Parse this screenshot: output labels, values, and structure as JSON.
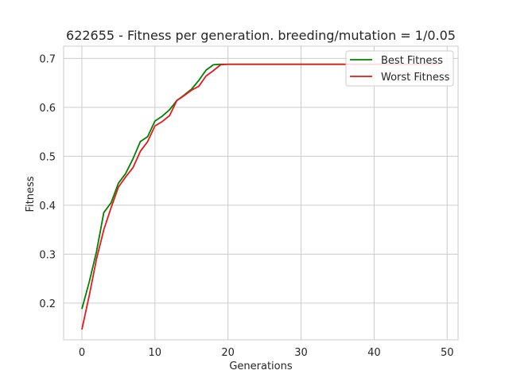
{
  "chart_data": {
    "type": "line",
    "title": "622655 - Fitness per generation. breeding/mutation = 1/0.05",
    "xlabel": "Generations",
    "ylabel": "Fitness",
    "xlim": [
      -2.5,
      51.5
    ],
    "ylim": [
      0.125,
      0.725
    ],
    "xticks": [
      0,
      10,
      20,
      30,
      40,
      50
    ],
    "yticks": [
      0.2,
      0.3,
      0.4,
      0.5,
      0.6,
      0.7
    ],
    "xtick_labels": [
      "0",
      "10",
      "20",
      "30",
      "40",
      "50"
    ],
    "ytick_labels": [
      "0.2",
      "0.3",
      "0.4",
      "0.5",
      "0.6",
      "0.7"
    ],
    "grid": true,
    "legend_position": "top-right",
    "x": [
      0,
      1,
      2,
      3,
      4,
      5,
      6,
      7,
      8,
      9,
      10,
      11,
      12,
      13,
      14,
      15,
      16,
      17,
      18,
      19,
      20,
      21,
      22,
      23,
      24,
      25,
      26,
      27,
      28,
      29,
      30,
      31,
      32,
      33,
      34,
      35,
      36,
      37,
      38,
      39,
      40,
      41,
      42,
      43,
      44,
      45,
      46,
      47,
      48,
      49
    ],
    "series": [
      {
        "name": "Best Fitness",
        "color": "#008000",
        "values": [
          0.188,
          0.243,
          0.305,
          0.385,
          0.405,
          0.445,
          0.465,
          0.495,
          0.53,
          0.54,
          0.572,
          0.582,
          0.595,
          0.614,
          0.625,
          0.637,
          0.655,
          0.676,
          0.687,
          0.688,
          0.688,
          0.688,
          0.688,
          0.688,
          0.688,
          0.688,
          0.688,
          0.688,
          0.688,
          0.688,
          0.688,
          0.688,
          0.688,
          0.688,
          0.688,
          0.688,
          0.688,
          0.688,
          0.688,
          0.688,
          0.688,
          0.688,
          0.688,
          0.688,
          0.688,
          0.688,
          0.688,
          0.688,
          0.688,
          0.688
        ]
      },
      {
        "name": "Worst Fitness",
        "color": "#e41a1c",
        "values": [
          0.146,
          0.215,
          0.29,
          0.35,
          0.395,
          0.437,
          0.458,
          0.477,
          0.51,
          0.53,
          0.562,
          0.571,
          0.583,
          0.614,
          0.624,
          0.635,
          0.643,
          0.664,
          0.675,
          0.687,
          0.688,
          0.688,
          0.688,
          0.688,
          0.688,
          0.688,
          0.688,
          0.688,
          0.688,
          0.688,
          0.688,
          0.688,
          0.688,
          0.688,
          0.688,
          0.688,
          0.688,
          0.688,
          0.688,
          0.688,
          0.688,
          0.688,
          0.688,
          0.688,
          0.688,
          0.688,
          0.688,
          0.688,
          0.688,
          0.688
        ]
      }
    ]
  }
}
